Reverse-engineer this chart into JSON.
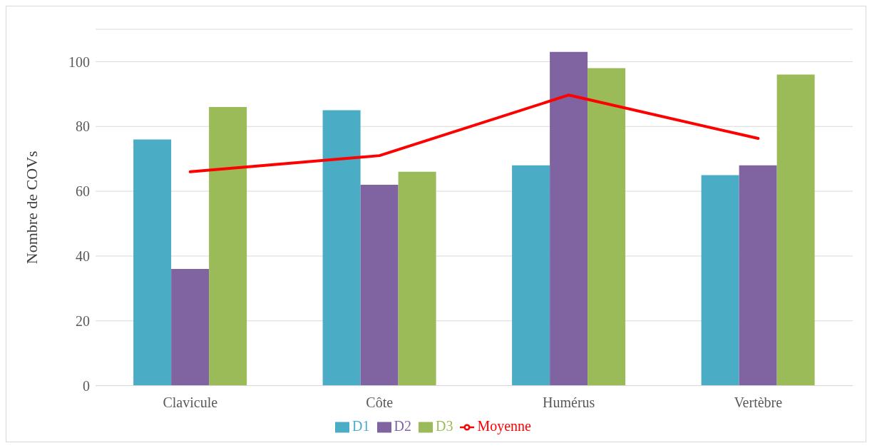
{
  "chart_data": {
    "type": "bar",
    "ylabel": "Nombre de COVs",
    "categories": [
      "Clavicule",
      "Côte",
      "Humérus",
      "Vertèbre"
    ],
    "series": [
      {
        "name": "D1",
        "color": "#4bacc6",
        "values": [
          76,
          85,
          68,
          65
        ]
      },
      {
        "name": "D2",
        "color": "#8064a2",
        "values": [
          36,
          62,
          103,
          68
        ]
      },
      {
        "name": "D3",
        "color": "#9bbb59",
        "values": [
          86,
          66,
          98,
          96
        ]
      },
      {
        "name": "Moyenne",
        "type": "line",
        "color": "#ff0000",
        "values": [
          66,
          71,
          89.7,
          76.3
        ]
      }
    ],
    "ylim": [
      0,
      110
    ],
    "yticks": [
      0,
      20,
      40,
      60,
      80,
      100
    ],
    "grid": "y",
    "legend": "bottom",
    "marker": "none",
    "line_style": "solid"
  }
}
